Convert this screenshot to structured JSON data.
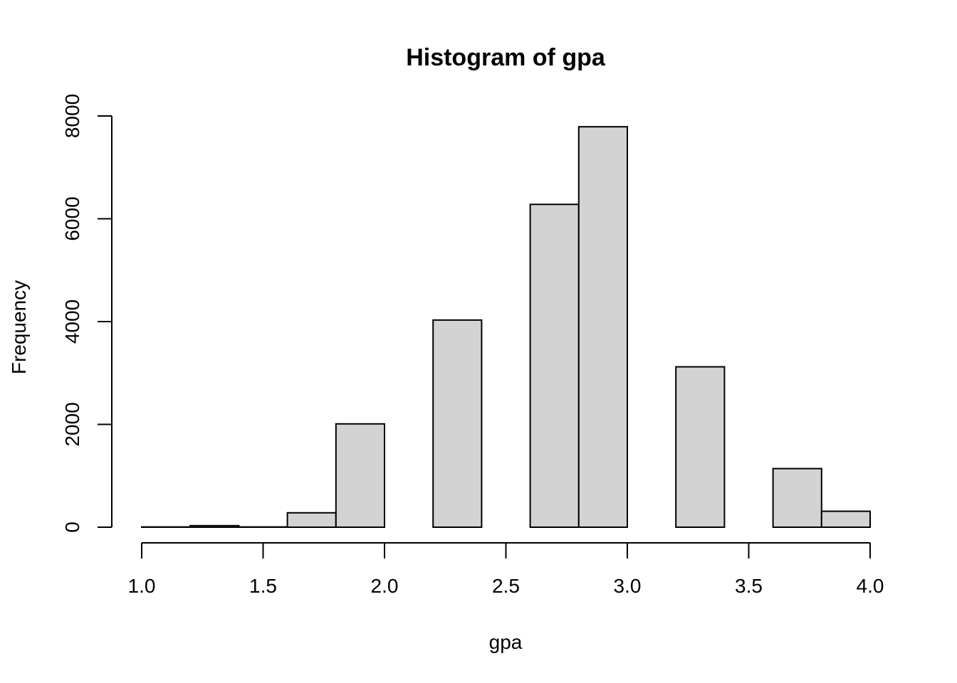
{
  "chart_data": {
    "type": "bar",
    "title": "Histogram of gpa",
    "xlabel": "gpa",
    "ylabel": "Frequency",
    "bins": [
      {
        "start": 1.0,
        "end": 1.2,
        "count": 5
      },
      {
        "start": 1.2,
        "end": 1.4,
        "count": 30
      },
      {
        "start": 1.4,
        "end": 1.6,
        "count": 5
      },
      {
        "start": 1.6,
        "end": 1.8,
        "count": 280
      },
      {
        "start": 1.8,
        "end": 2.0,
        "count": 2010
      },
      {
        "start": 2.0,
        "end": 2.2,
        "count": 0
      },
      {
        "start": 2.2,
        "end": 2.4,
        "count": 4030
      },
      {
        "start": 2.4,
        "end": 2.6,
        "count": 0
      },
      {
        "start": 2.6,
        "end": 2.8,
        "count": 6280
      },
      {
        "start": 2.8,
        "end": 3.0,
        "count": 7790
      },
      {
        "start": 3.0,
        "end": 3.2,
        "count": 0
      },
      {
        "start": 3.2,
        "end": 3.4,
        "count": 3120
      },
      {
        "start": 3.4,
        "end": 3.6,
        "count": 0
      },
      {
        "start": 3.6,
        "end": 3.8,
        "count": 1140
      },
      {
        "start": 3.8,
        "end": 4.0,
        "count": 310
      }
    ],
    "xlim": [
      1.0,
      4.0
    ],
    "ylim": [
      0,
      8000
    ],
    "x_ticks": [
      "1.0",
      "1.5",
      "2.0",
      "2.5",
      "3.0",
      "3.5",
      "4.0"
    ],
    "y_ticks": [
      "0",
      "2000",
      "4000",
      "6000",
      "8000"
    ],
    "bar_color": "#d3d3d3",
    "grid": false
  }
}
